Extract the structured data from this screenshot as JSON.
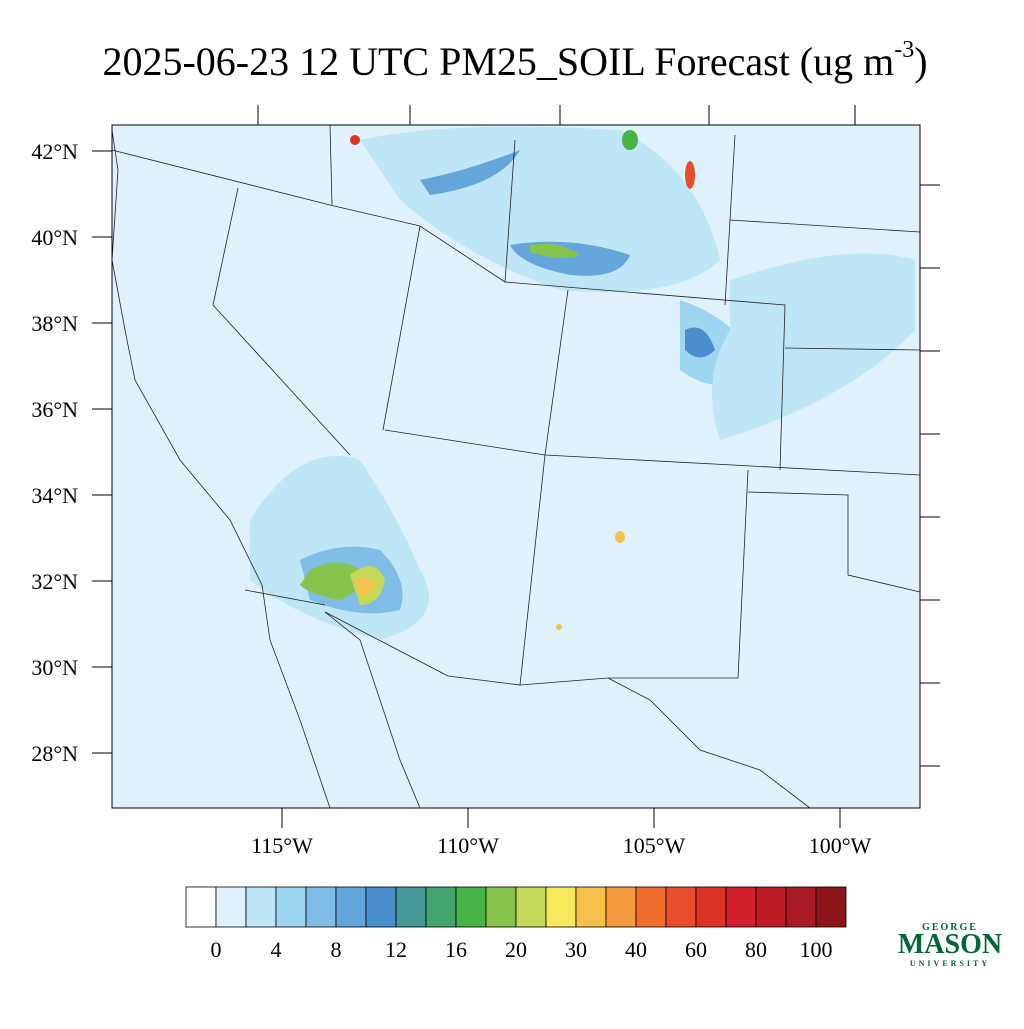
{
  "title": {
    "text": "2025-06-23 12 UTC PM25_SOIL Forecast (ug m",
    "superscript": "-3",
    "suffix": ")"
  },
  "lat_ticks": [
    {
      "value": 42,
      "label": "42°N"
    },
    {
      "value": 40,
      "label": "40°N"
    },
    {
      "value": 38,
      "label": "38°N"
    },
    {
      "value": 36,
      "label": "36°N"
    },
    {
      "value": 34,
      "label": "34°N"
    },
    {
      "value": 32,
      "label": "32°N"
    },
    {
      "value": 30,
      "label": "30°N"
    },
    {
      "value": 28,
      "label": "28°N"
    }
  ],
  "lon_ticks": [
    {
      "value": -115,
      "label": "115°W"
    },
    {
      "value": -110,
      "label": "110°W"
    },
    {
      "value": -105,
      "label": "105°W"
    },
    {
      "value": -100,
      "label": "100°W"
    }
  ],
  "colorbar": {
    "colors": [
      "#ffffff",
      "#dff2fb",
      "#bfe6f7",
      "#9ed6f2",
      "#80bde6",
      "#64a5dc",
      "#4a8fcc",
      "#46999a",
      "#45a56e",
      "#47b446",
      "#86c44e",
      "#c3d957",
      "#f7e85e",
      "#f7c04a",
      "#f59b3d",
      "#f06e2c",
      "#e84c2b",
      "#dc3326",
      "#d11f2b",
      "#bd1c25",
      "#a81b24",
      "#8c1519"
    ],
    "ticks": [
      0,
      4,
      8,
      12,
      16,
      20,
      30,
      40,
      60,
      80,
      100
    ]
  },
  "logo": {
    "top": "GEORGE",
    "main": "MASON",
    "bottom": "UNIVERSITY"
  }
}
